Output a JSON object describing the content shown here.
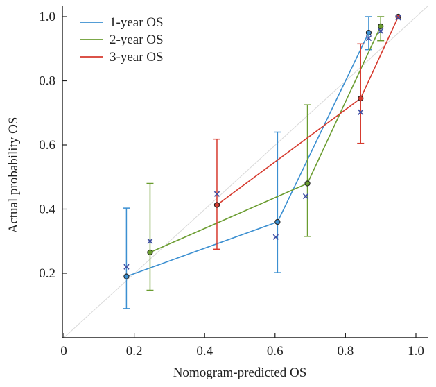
{
  "chart_data": {
    "type": "line",
    "xlabel": "Nomogram-predicted OS",
    "ylabel": "Actual probability OS",
    "xlim": [
      0,
      1.0
    ],
    "ylim": [
      0.05,
      1.02
    ],
    "x_ticks": [
      0,
      0.2,
      0.4,
      0.6,
      0.8,
      1.0
    ],
    "x_tick_labels": [
      "0",
      "0.2",
      "0.4",
      "0.6",
      "0.8",
      "1.0"
    ],
    "y_ticks": [
      0.2,
      0.4,
      0.6,
      0.8,
      1.0
    ],
    "y_tick_labels": [
      "0.2",
      "0.4",
      "0.6",
      "0.8",
      "1.0"
    ],
    "grid": false,
    "reference_line": "diagonal",
    "legend_position": "top-left",
    "series": [
      {
        "name": "1-year OS",
        "color": "#3b8fd1",
        "points": [
          {
            "x": 0.178,
            "y": 0.19,
            "ci": [
              0.09,
              0.403
            ]
          },
          {
            "x": 0.607,
            "y": 0.36,
            "ci": [
              0.202,
              0.64
            ]
          },
          {
            "x": 0.866,
            "y": 0.95,
            "ci": [
              0.897,
              1.0
            ]
          }
        ],
        "observed_x": [
          {
            "x": 0.178,
            "y": 0.22
          },
          {
            "x": 0.602,
            "y": 0.313
          },
          {
            "x": 0.866,
            "y": 0.933
          }
        ]
      },
      {
        "name": "2-year OS",
        "color": "#6a9c2f",
        "points": [
          {
            "x": 0.245,
            "y": 0.265,
            "ci": [
              0.147,
              0.48
            ]
          },
          {
            "x": 0.692,
            "y": 0.48,
            "ci": [
              0.315,
              0.725
            ]
          },
          {
            "x": 0.9,
            "y": 0.97,
            "ci": [
              0.925,
              1.0
            ]
          }
        ],
        "observed_x": [
          {
            "x": 0.245,
            "y": 0.3
          },
          {
            "x": 0.687,
            "y": 0.44
          },
          {
            "x": 0.9,
            "y": 0.955
          }
        ]
      },
      {
        "name": "3-year OS",
        "color": "#d63a2e",
        "points": [
          {
            "x": 0.435,
            "y": 0.413,
            "ci": [
              0.275,
              0.618
            ]
          },
          {
            "x": 0.843,
            "y": 0.745,
            "ci": [
              0.605,
              0.915
            ]
          },
          {
            "x": 0.95,
            "y": 1.0,
            "ci": [
              1.0,
              1.0
            ]
          }
        ],
        "observed_x": [
          {
            "x": 0.435,
            "y": 0.447
          },
          {
            "x": 0.843,
            "y": 0.702
          },
          {
            "x": 0.95,
            "y": 0.997
          }
        ]
      }
    ],
    "marker_color": "#3f4fa3"
  }
}
